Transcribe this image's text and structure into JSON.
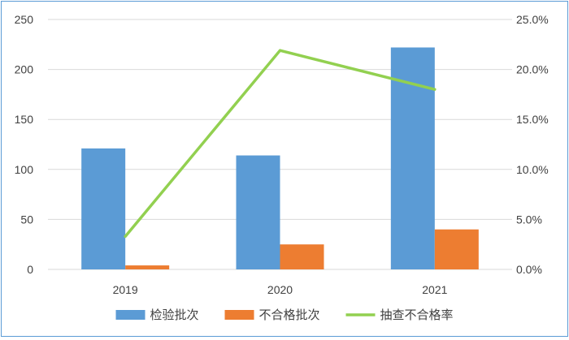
{
  "chart_data": {
    "type": "bar",
    "categories": [
      "2019",
      "2020",
      "2021"
    ],
    "series": [
      {
        "name": "检验批次",
        "kind": "bar",
        "axis": "left",
        "color": "#5b9bd5",
        "values": [
          121,
          114,
          222
        ]
      },
      {
        "name": "不合格批次",
        "kind": "bar",
        "axis": "left",
        "color": "#ed7d31",
        "values": [
          4,
          25,
          40
        ]
      },
      {
        "name": "抽查不合格率",
        "kind": "line",
        "axis": "right",
        "color": "#92d050",
        "values": [
          0.033,
          0.219,
          0.18
        ]
      }
    ],
    "y_left": {
      "min": 0,
      "max": 250,
      "ticks": [
        "0",
        "50",
        "100",
        "150",
        "200",
        "250"
      ]
    },
    "y_right": {
      "min": 0,
      "max": 0.25,
      "ticks": [
        "0.0%",
        "5.0%",
        "10.0%",
        "15.0%",
        "20.0%",
        "25.0%"
      ]
    },
    "grid": true,
    "legend_position": "bottom"
  }
}
